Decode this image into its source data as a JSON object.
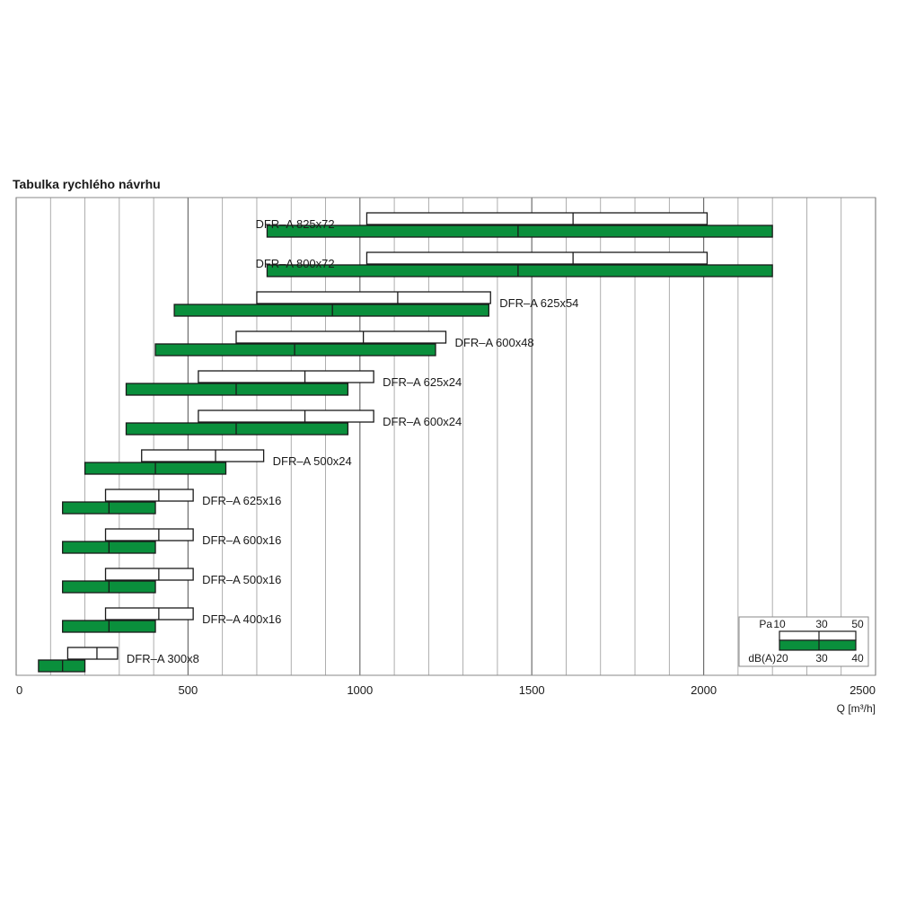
{
  "chart_data": {
    "type": "bar",
    "title": "Tabulka rychlého návrhu",
    "xlabel": "Q [m³/h]",
    "xlim": [
      0,
      2500
    ],
    "x_ticks": [
      0,
      500,
      1000,
      1500,
      2000,
      2500
    ],
    "x_tick_labels": [
      "0",
      "500",
      "1000",
      "1500",
      "2000",
      "2500"
    ],
    "grid": true,
    "grid_step": 100,
    "legend_position": "bottom-right",
    "colors": {
      "pressure_bar": "#ffffff",
      "sound_bar": "#0a8f3c",
      "border": "#1a1a1a",
      "grid": "#9a9a9a"
    },
    "legend": {
      "pressure": {
        "label": "Pa",
        "ticks": [
          "10",
          "30",
          "50"
        ]
      },
      "sound": {
        "label": "dB(A)",
        "ticks": [
          "20",
          "30",
          "40"
        ]
      }
    },
    "series": [
      {
        "name": "Pa"
      },
      {
        "name": "dB(A)"
      }
    ],
    "rows": [
      {
        "label": "DFR–A 825x72",
        "label_side": "left",
        "pressure": [
          1020,
          1620,
          2010
        ],
        "sound": [
          730,
          1460,
          2200
        ]
      },
      {
        "label": "DFR–A 800x72",
        "label_side": "left",
        "pressure": [
          1020,
          1620,
          2010
        ],
        "sound": [
          730,
          1460,
          2200
        ]
      },
      {
        "label": "DFR–A 625x54",
        "label_side": "right",
        "pressure": [
          700,
          1110,
          1380
        ],
        "sound": [
          460,
          920,
          1375
        ]
      },
      {
        "label": "DFR–A 600x48",
        "label_side": "right",
        "pressure": [
          640,
          1010,
          1250
        ],
        "sound": [
          405,
          810,
          1220
        ]
      },
      {
        "label": "DFR–A 625x24",
        "label_side": "right",
        "pressure": [
          530,
          840,
          1040
        ],
        "sound": [
          320,
          640,
          965
        ]
      },
      {
        "label": "DFR–A 600x24",
        "label_side": "right",
        "pressure": [
          530,
          840,
          1040
        ],
        "sound": [
          320,
          640,
          965
        ]
      },
      {
        "label": "DFR–A 500x24",
        "label_side": "right",
        "pressure": [
          365,
          580,
          720
        ],
        "sound": [
          200,
          405,
          610
        ]
      },
      {
        "label": "DFR–A 625x16",
        "label_side": "right",
        "pressure": [
          260,
          415,
          515
        ],
        "sound": [
          135,
          270,
          405
        ]
      },
      {
        "label": "DFR–A 600x16",
        "label_side": "right",
        "pressure": [
          260,
          415,
          515
        ],
        "sound": [
          135,
          270,
          405
        ]
      },
      {
        "label": "DFR–A 500x16",
        "label_side": "right",
        "pressure": [
          260,
          415,
          515
        ],
        "sound": [
          135,
          270,
          405
        ]
      },
      {
        "label": "DFR–A 400x16",
        "label_side": "right",
        "pressure": [
          260,
          415,
          515
        ],
        "sound": [
          135,
          270,
          405
        ]
      },
      {
        "label": "DFR–A 300x8",
        "label_side": "right",
        "pressure": [
          150,
          235,
          295
        ],
        "sound": [
          65,
          135,
          200
        ]
      }
    ]
  }
}
